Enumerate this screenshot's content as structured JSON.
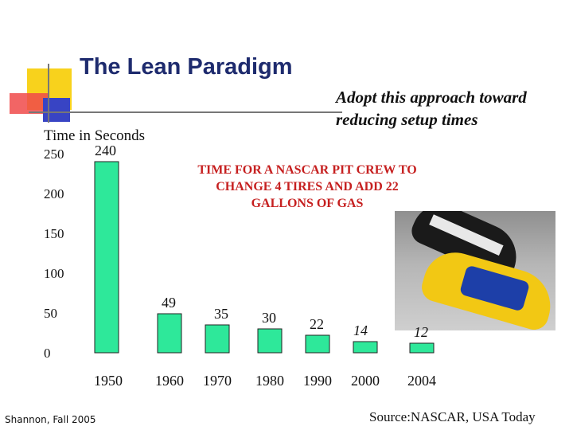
{
  "slide": {
    "title": "The Lean Paradigm",
    "subtitle_lines": [
      "Adopt this approach toward",
      "reducing setup times"
    ],
    "caption_lines": [
      "TIME FOR A NASCAR PIT CREW TO",
      "CHANGE 4 TIRES AND ADD 22",
      "GALLONS OF GAS"
    ],
    "footer_left": "Shannon, Fall 2005",
    "footer_right": "Source:NASCAR, USA Today",
    "photo_icon": "nascar-race-cars-photo"
  },
  "chart_data": {
    "type": "bar",
    "ylabel": "Time in Seconds",
    "categories": [
      "1950",
      "1960",
      "1970",
      "1980",
      "1990",
      "2000",
      "2004"
    ],
    "values": [
      240,
      49,
      35,
      30,
      22,
      14,
      12
    ],
    "data_labels": [
      "240",
      "49",
      "35",
      "30",
      "22",
      "14",
      "12"
    ],
    "y_ticks": [
      0,
      50,
      100,
      150,
      200,
      250
    ],
    "ylim": [
      0,
      250
    ],
    "grid": false,
    "bar_color": "#2ee89a",
    "caption_color": "#c62020",
    "title_color": "#1e2b6e"
  }
}
